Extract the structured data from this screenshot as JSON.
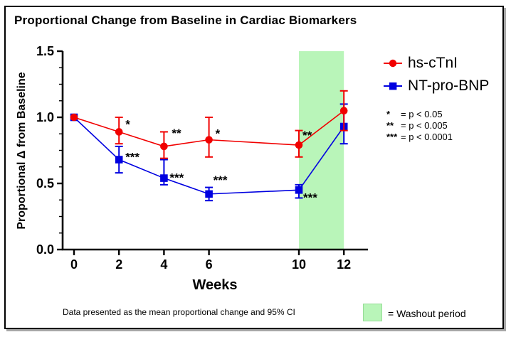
{
  "title": "Proportional Change from Baseline in Cardiac Biomarkers",
  "legend": {
    "items": [
      {
        "label": "hs-cTnI",
        "color": "#F10000",
        "marker": "circle"
      },
      {
        "label": "NT-pro-BNP",
        "color": "#0000E0",
        "marker": "square"
      }
    ]
  },
  "sig_key": [
    {
      "stars": "*",
      "text": "= p < 0.05"
    },
    {
      "stars": "**",
      "text": "= p < 0.005"
    },
    {
      "stars": "***",
      "text": "= p < 0.0001"
    }
  ],
  "footnote": "Data presented as the mean proportional change and 95% CI",
  "washout_legend": {
    "label": "= Washout period",
    "color": "#B9F5B9"
  },
  "chart_data": {
    "type": "line",
    "title": "Proportional Change from Baseline in Cardiac Biomarkers",
    "xlabel": "Weeks",
    "ylabel": "Proportional Δ from Baseline",
    "x": [
      0,
      2,
      4,
      6,
      10,
      12
    ],
    "xticks": [
      0,
      2,
      4,
      6,
      10,
      12
    ],
    "yticks": [
      0.0,
      0.5,
      1.0,
      1.5
    ],
    "xlim": [
      -0.5,
      13.1
    ],
    "ylim": [
      0,
      1.5
    ],
    "minor_tick_step": 0.125,
    "grid": false,
    "legend_position": "right",
    "error_bars": "95% CI",
    "washout_region": {
      "x_start": 10,
      "x_end": 12,
      "color": "#B9F5B9",
      "label": "Washout period"
    },
    "series": [
      {
        "name": "hs-cTnI",
        "color": "#F10000",
        "marker": "circle",
        "values": [
          1.0,
          0.89,
          0.78,
          0.83,
          0.79,
          1.05
        ],
        "ci_low": [
          1.0,
          0.8,
          0.69,
          0.7,
          0.7,
          0.9
        ],
        "ci_high": [
          1.0,
          1.0,
          0.89,
          1.0,
          0.9,
          1.2
        ],
        "sig": [
          null,
          "*",
          "**",
          "*",
          "**",
          null
        ]
      },
      {
        "name": "NT-pro-BNP",
        "color": "#0000E0",
        "marker": "square",
        "values": [
          1.0,
          0.68,
          0.54,
          0.42,
          0.45,
          0.93
        ],
        "ci_low": [
          1.0,
          0.58,
          0.49,
          0.37,
          0.39,
          0.8
        ],
        "ci_high": [
          1.0,
          0.78,
          0.68,
          0.47,
          0.49,
          1.1
        ],
        "sig": [
          null,
          "***",
          "***",
          "***",
          "***",
          null
        ]
      }
    ]
  }
}
